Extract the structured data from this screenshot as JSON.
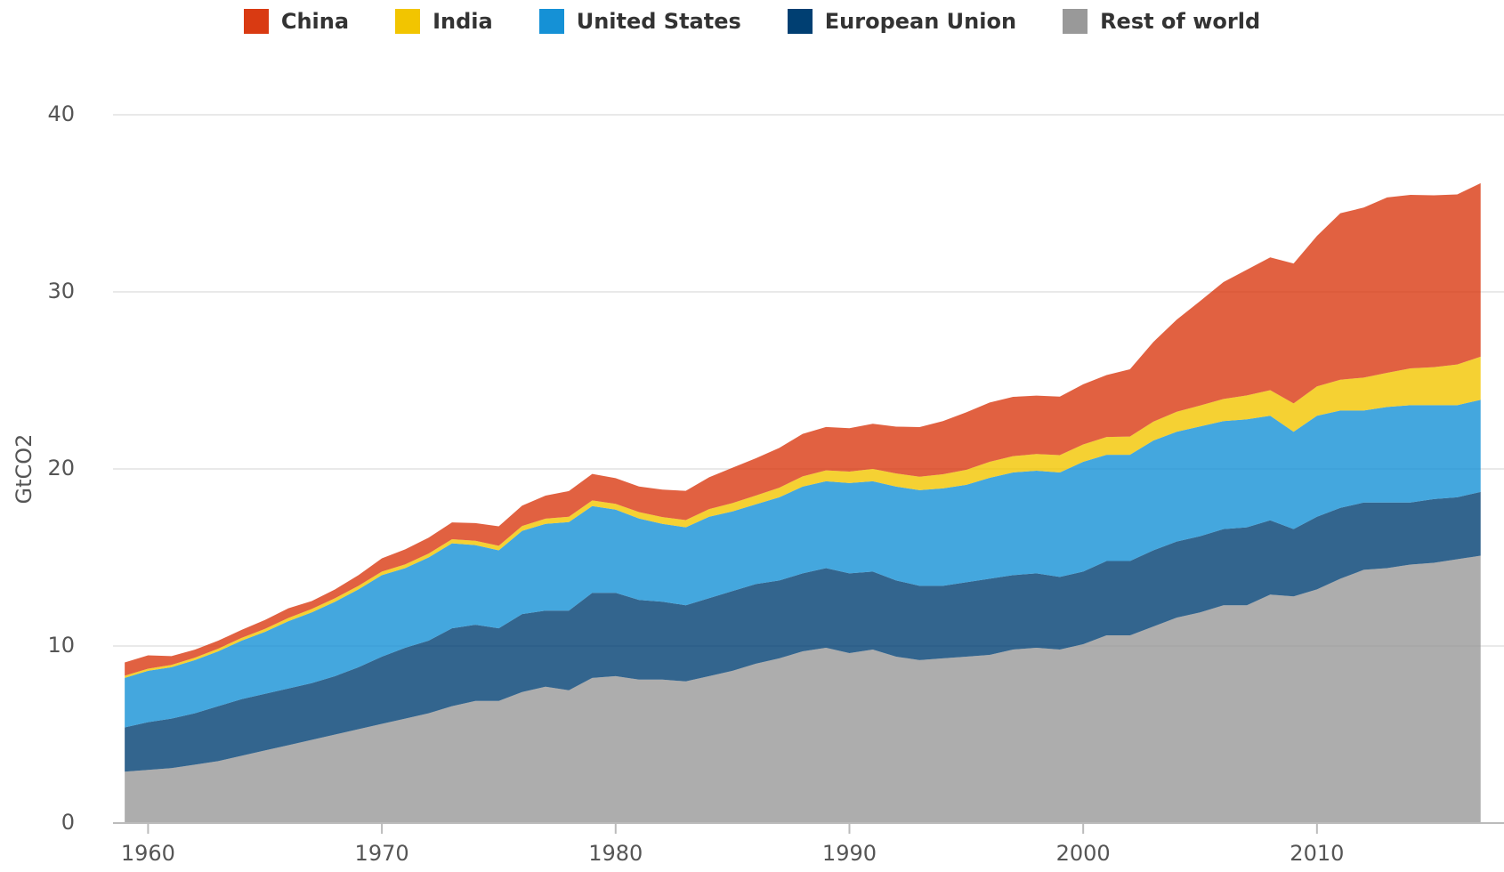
{
  "chart_data": {
    "type": "stacked_area",
    "y_label": "GtCO2",
    "x": [
      1959,
      1960,
      1961,
      1962,
      1963,
      1964,
      1965,
      1966,
      1967,
      1968,
      1969,
      1970,
      1971,
      1972,
      1973,
      1974,
      1975,
      1976,
      1977,
      1978,
      1979,
      1980,
      1981,
      1982,
      1983,
      1984,
      1985,
      1986,
      1987,
      1988,
      1989,
      1990,
      1991,
      1992,
      1993,
      1994,
      1995,
      1996,
      1997,
      1998,
      1999,
      2000,
      2001,
      2002,
      2003,
      2004,
      2005,
      2006,
      2007,
      2008,
      2009,
      2010,
      2011,
      2012,
      2013,
      2014,
      2015,
      2016,
      2017
    ],
    "xlim": [
      1958.5,
      2018
    ],
    "xticks": [
      1960,
      1970,
      1980,
      1990,
      2000,
      2010
    ],
    "ylim": [
      0,
      40
    ],
    "yticks": [
      0,
      10,
      20,
      30,
      40
    ],
    "grid": true,
    "legend": "top",
    "series": [
      {
        "name": "Rest of world",
        "color": "#999999",
        "values": [
          2.9,
          3.0,
          3.1,
          3.3,
          3.5,
          3.8,
          4.1,
          4.4,
          4.7,
          5.0,
          5.3,
          5.6,
          5.9,
          6.2,
          6.6,
          6.9,
          6.9,
          7.4,
          7.7,
          7.5,
          8.2,
          8.3,
          8.1,
          8.1,
          8.0,
          8.3,
          8.6,
          9.0,
          9.3,
          9.7,
          9.9,
          9.6,
          9.8,
          9.4,
          9.2,
          9.3,
          9.4,
          9.5,
          9.8,
          9.9,
          9.8,
          10.1,
          10.6,
          10.6,
          11.1,
          11.6,
          11.9,
          12.3,
          12.3,
          12.9,
          12.8,
          13.2,
          13.8,
          14.3,
          14.4,
          14.6,
          14.7,
          14.9,
          15.1
        ]
      },
      {
        "name": "European Union",
        "color": "#003f72",
        "values": [
          2.5,
          2.7,
          2.8,
          2.9,
          3.1,
          3.2,
          3.2,
          3.2,
          3.2,
          3.3,
          3.5,
          3.8,
          4.0,
          4.1,
          4.4,
          4.3,
          4.1,
          4.4,
          4.3,
          4.5,
          4.8,
          4.7,
          4.5,
          4.4,
          4.3,
          4.4,
          4.5,
          4.5,
          4.4,
          4.4,
          4.5,
          4.5,
          4.4,
          4.3,
          4.2,
          4.1,
          4.2,
          4.3,
          4.2,
          4.2,
          4.1,
          4.1,
          4.2,
          4.2,
          4.3,
          4.3,
          4.3,
          4.3,
          4.4,
          4.2,
          3.8,
          4.1,
          4.0,
          3.8,
          3.7,
          3.5,
          3.6,
          3.5,
          3.6
        ]
      },
      {
        "name": "United States",
        "color": "#1591d6",
        "values": [
          2.8,
          2.9,
          2.9,
          3.0,
          3.1,
          3.3,
          3.5,
          3.8,
          4.0,
          4.2,
          4.4,
          4.6,
          4.5,
          4.7,
          4.8,
          4.5,
          4.4,
          4.7,
          4.9,
          5.0,
          4.9,
          4.7,
          4.6,
          4.4,
          4.4,
          4.6,
          4.5,
          4.5,
          4.7,
          4.9,
          4.9,
          5.1,
          5.1,
          5.3,
          5.4,
          5.5,
          5.5,
          5.7,
          5.8,
          5.8,
          5.9,
          6.2,
          6.0,
          6.0,
          6.2,
          6.2,
          6.2,
          6.1,
          6.1,
          5.9,
          5.5,
          5.7,
          5.5,
          5.2,
          5.4,
          5.5,
          5.3,
          5.2,
          5.2
        ]
      },
      {
        "name": "India",
        "color": "#f2c500",
        "values": [
          0.12,
          0.12,
          0.13,
          0.14,
          0.15,
          0.16,
          0.17,
          0.18,
          0.19,
          0.2,
          0.2,
          0.2,
          0.21,
          0.22,
          0.23,
          0.24,
          0.26,
          0.28,
          0.29,
          0.3,
          0.32,
          0.33,
          0.36,
          0.38,
          0.41,
          0.43,
          0.47,
          0.5,
          0.54,
          0.58,
          0.62,
          0.65,
          0.7,
          0.74,
          0.76,
          0.8,
          0.85,
          0.9,
          0.92,
          0.94,
          0.98,
          0.98,
          1.0,
          1.03,
          1.07,
          1.13,
          1.18,
          1.25,
          1.35,
          1.45,
          1.6,
          1.66,
          1.74,
          1.86,
          1.93,
          2.08,
          2.15,
          2.3,
          2.44
        ]
      },
      {
        "name": "China",
        "color": "#d93a12",
        "values": [
          0.75,
          0.75,
          0.5,
          0.45,
          0.45,
          0.45,
          0.5,
          0.55,
          0.45,
          0.5,
          0.6,
          0.75,
          0.85,
          0.9,
          0.95,
          1.0,
          1.1,
          1.15,
          1.3,
          1.45,
          1.5,
          1.45,
          1.45,
          1.55,
          1.65,
          1.8,
          2.0,
          2.1,
          2.25,
          2.4,
          2.45,
          2.45,
          2.55,
          2.65,
          2.8,
          3.0,
          3.25,
          3.35,
          3.35,
          3.3,
          3.3,
          3.4,
          3.5,
          3.8,
          4.5,
          5.2,
          5.9,
          6.6,
          7.1,
          7.5,
          7.9,
          8.5,
          9.4,
          9.6,
          9.9,
          9.8,
          9.7,
          9.6,
          9.8
        ]
      }
    ],
    "legend_order": [
      4,
      3,
      2,
      1,
      0
    ]
  }
}
